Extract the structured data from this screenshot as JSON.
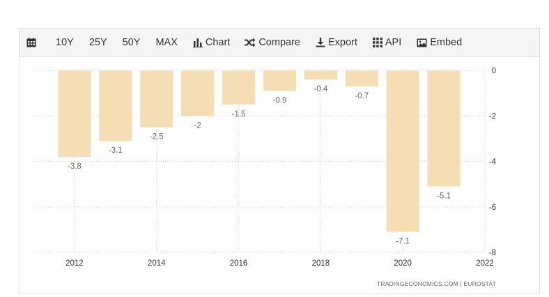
{
  "toolbar": {
    "calendar_icon": "calendar-icon",
    "range_10y": "10Y",
    "range_25y": "25Y",
    "range_50y": "50Y",
    "range_max": "MAX",
    "chart_label": "Chart",
    "compare_label": "Compare",
    "export_label": "Export",
    "api_label": "API",
    "embed_label": "Embed"
  },
  "source_text": "TRADINGECONOMICS.COM  |  EUROSTAT",
  "colors": {
    "bar": "#f5deb3",
    "grid": "#cfcfcf",
    "toolbar_bg": "#f5f5f5"
  },
  "chart_data": {
    "type": "bar",
    "title": "",
    "xlabel": "",
    "ylabel": "",
    "categories": [
      "2012",
      "2013",
      "2014",
      "2015",
      "2016",
      "2017",
      "2018",
      "2019",
      "2020",
      "2021"
    ],
    "values": [
      -3.8,
      -3.1,
      -2.5,
      -2,
      -1.5,
      -0.9,
      -0.4,
      -0.7,
      -7.1,
      -5.1
    ],
    "value_labels": [
      "-3.8",
      "-3.1",
      "-2.5",
      "-2",
      "-1.5",
      "-0.9",
      "-0.4",
      "-0.7",
      "-7.1",
      "-5.1"
    ],
    "ylim": [
      -8,
      0
    ],
    "yticks": [
      "0",
      "-2",
      "-4",
      "-6",
      "-8"
    ],
    "ytick_values": [
      0,
      -2,
      -4,
      -6,
      -8
    ],
    "xticks": [
      "2012",
      "2014",
      "2016",
      "2018",
      "2020",
      "2022"
    ],
    "xtick_values": [
      2012,
      2014,
      2016,
      2018,
      2020,
      2022
    ],
    "grid": true,
    "y_axis_side": "right"
  }
}
